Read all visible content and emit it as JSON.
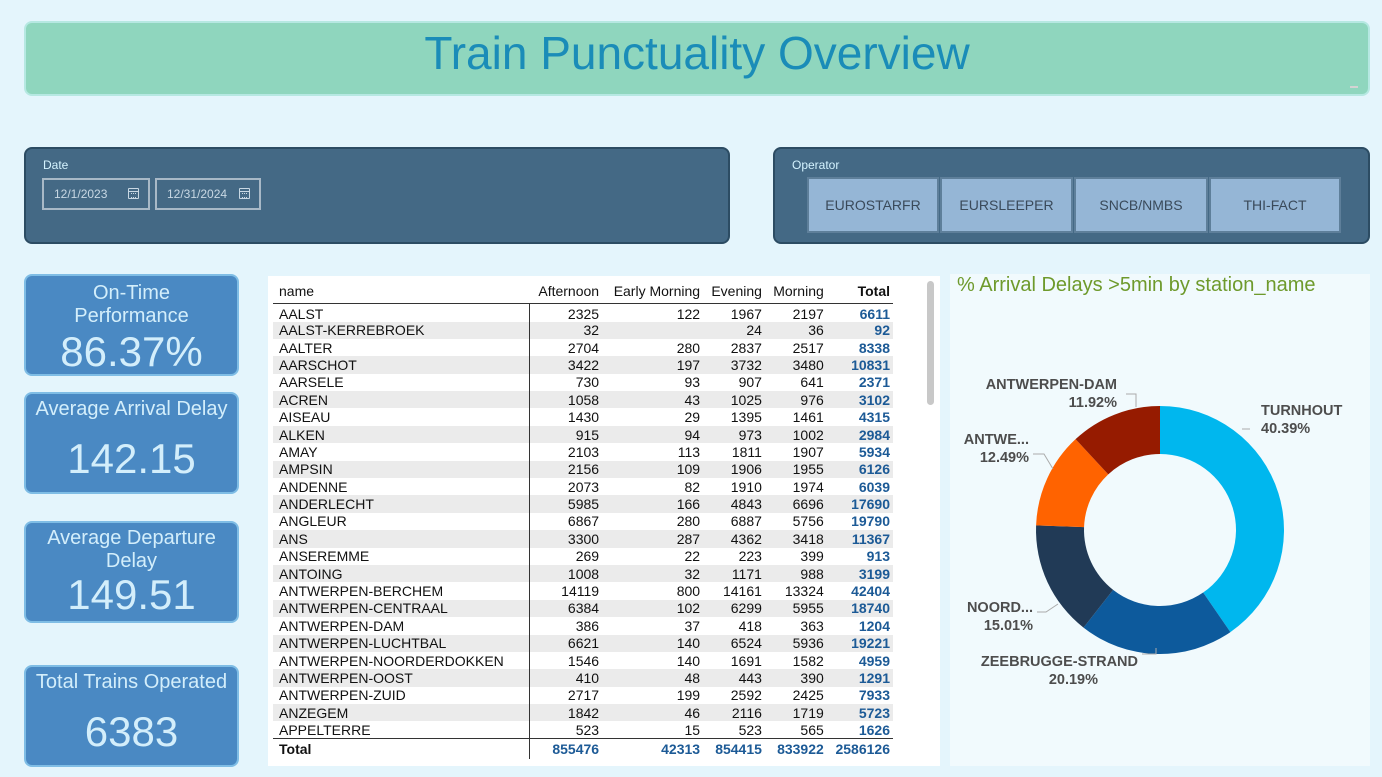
{
  "title": "Train Punctuality Overview",
  "date_slicer": {
    "label": "Date",
    "start": "12/1/2023",
    "end": "12/31/2024"
  },
  "operator_slicer": {
    "label": "Operator",
    "options": [
      "EUROSTARFR",
      "EURSLEEPER",
      "SNCB/NMBS",
      "THI-FACT"
    ]
  },
  "kpis": {
    "on_time": {
      "label": "On-Time Performance",
      "value": "86.37%"
    },
    "avg_arrival": {
      "label": "Average Arrival Delay",
      "value": "142.15"
    },
    "avg_departure": {
      "label": "Average Departure Delay",
      "value": "149.51"
    },
    "total_trains": {
      "label": "Total Trains Operated",
      "value": "6383"
    }
  },
  "table": {
    "columns": [
      "name",
      "Afternoon",
      "Early Morning",
      "Evening",
      "Morning",
      "Total"
    ],
    "rows": [
      [
        "AALST",
        "2325",
        "122",
        "1967",
        "2197",
        "6611"
      ],
      [
        "AALST-KERREBROEK",
        "32",
        "",
        "24",
        "36",
        "92"
      ],
      [
        "AALTER",
        "2704",
        "280",
        "2837",
        "2517",
        "8338"
      ],
      [
        "AARSCHOT",
        "3422",
        "197",
        "3732",
        "3480",
        "10831"
      ],
      [
        "AARSELE",
        "730",
        "93",
        "907",
        "641",
        "2371"
      ],
      [
        "ACREN",
        "1058",
        "43",
        "1025",
        "976",
        "3102"
      ],
      [
        "AISEAU",
        "1430",
        "29",
        "1395",
        "1461",
        "4315"
      ],
      [
        "ALKEN",
        "915",
        "94",
        "973",
        "1002",
        "2984"
      ],
      [
        "AMAY",
        "2103",
        "113",
        "1811",
        "1907",
        "5934"
      ],
      [
        "AMPSIN",
        "2156",
        "109",
        "1906",
        "1955",
        "6126"
      ],
      [
        "ANDENNE",
        "2073",
        "82",
        "1910",
        "1974",
        "6039"
      ],
      [
        "ANDERLECHT",
        "5985",
        "166",
        "4843",
        "6696",
        "17690"
      ],
      [
        "ANGLEUR",
        "6867",
        "280",
        "6887",
        "5756",
        "19790"
      ],
      [
        "ANS",
        "3300",
        "287",
        "4362",
        "3418",
        "11367"
      ],
      [
        "ANSEREMME",
        "269",
        "22",
        "223",
        "399",
        "913"
      ],
      [
        "ANTOING",
        "1008",
        "32",
        "1171",
        "988",
        "3199"
      ],
      [
        "ANTWERPEN-BERCHEM",
        "14119",
        "800",
        "14161",
        "13324",
        "42404"
      ],
      [
        "ANTWERPEN-CENTRAAL",
        "6384",
        "102",
        "6299",
        "5955",
        "18740"
      ],
      [
        "ANTWERPEN-DAM",
        "386",
        "37",
        "418",
        "363",
        "1204"
      ],
      [
        "ANTWERPEN-LUCHTBAL",
        "6621",
        "140",
        "6524",
        "5936",
        "19221"
      ],
      [
        "ANTWERPEN-NOORDERDOKKEN",
        "1546",
        "140",
        "1691",
        "1582",
        "4959"
      ],
      [
        "ANTWERPEN-OOST",
        "410",
        "48",
        "443",
        "390",
        "1291"
      ],
      [
        "ANTWERPEN-ZUID",
        "2717",
        "199",
        "2592",
        "2425",
        "7933"
      ],
      [
        "ANZEGEM",
        "1842",
        "46",
        "2116",
        "1719",
        "5723"
      ],
      [
        "APPELTERRE",
        "523",
        "15",
        "523",
        "565",
        "1626"
      ]
    ],
    "total_row": [
      "Total",
      "855476",
      "42313",
      "854415",
      "833922",
      "2586126"
    ]
  },
  "chart_data": {
    "type": "pie",
    "title": "% Arrival Delays >5min by station_name",
    "slices": [
      {
        "label": "TURNHOUT",
        "value": 40.39,
        "display": "40.39%",
        "color": "#00b7ee"
      },
      {
        "label": "ZEEBRUGGE-STRAND",
        "value": 20.19,
        "display": "20.19%",
        "color": "#0d5a9c"
      },
      {
        "label": "NOORD...",
        "value": 15.01,
        "display": "15.01%",
        "color": "#213a56"
      },
      {
        "label": "ANTWE...",
        "value": 12.49,
        "display": "12.49%",
        "color": "#ff6300"
      },
      {
        "label": "ANTWERPEN-DAM",
        "value": 11.92,
        "display": "11.92%",
        "color": "#961b00"
      }
    ]
  }
}
